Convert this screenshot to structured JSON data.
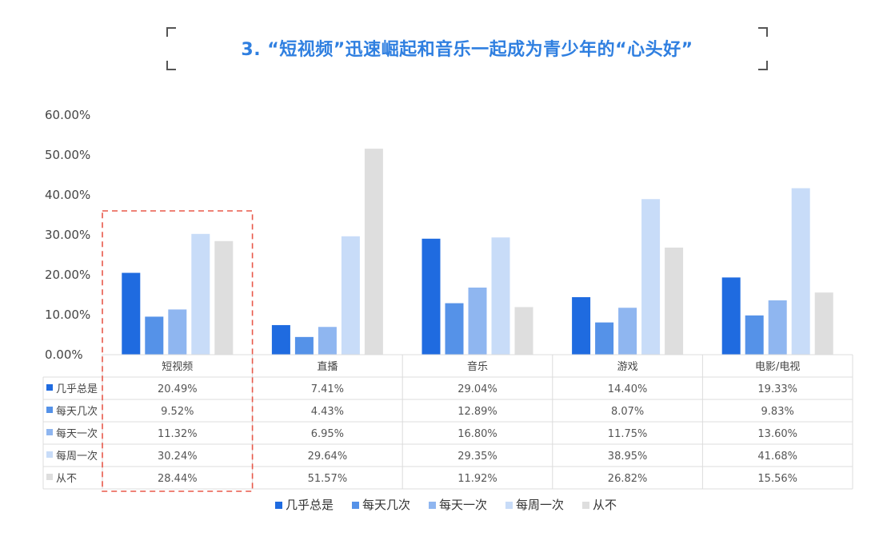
{
  "title": "3. “短视频”迅速崛起和音乐一起成为青少年的“心头好”",
  "chart_data": {
    "type": "bar",
    "categories": [
      "短视频",
      "直播",
      "音乐",
      "游戏",
      "电影/电视"
    ],
    "series": [
      {
        "name": "几乎总是",
        "color": "#1f6be0",
        "values": [
          20.49,
          7.41,
          29.04,
          14.4,
          19.33
        ],
        "labels": [
          "20.49%",
          "7.41%",
          "29.04%",
          "14.40%",
          "19.33%"
        ]
      },
      {
        "name": "每天几次",
        "color": "#5592e8",
        "values": [
          9.52,
          4.43,
          12.89,
          8.07,
          9.83
        ],
        "labels": [
          "9.52%",
          "4.43%",
          "12.89%",
          "8.07%",
          "9.83%"
        ]
      },
      {
        "name": "每天一次",
        "color": "#8fb6f0",
        "values": [
          11.32,
          6.95,
          16.8,
          11.75,
          13.6
        ],
        "labels": [
          "11.32%",
          "6.95%",
          "16.80%",
          "11.75%",
          "13.60%"
        ]
      },
      {
        "name": "每周一次",
        "color": "#c8dcf8",
        "values": [
          30.24,
          29.64,
          29.35,
          38.95,
          41.68
        ],
        "labels": [
          "30.24%",
          "29.64%",
          "29.35%",
          "38.95%",
          "41.68%"
        ]
      },
      {
        "name": "从不",
        "color": "#dedede",
        "values": [
          28.44,
          51.57,
          11.92,
          26.82,
          15.56
        ],
        "labels": [
          "28.44%",
          "51.57%",
          "11.92%",
          "26.82%",
          "15.56%"
        ]
      }
    ],
    "yticks": [
      "0.00%",
      "10.00%",
      "20.00%",
      "30.00%",
      "40.00%",
      "50.00%",
      "60.00%"
    ],
    "ylim": [
      0,
      60
    ],
    "highlight_category": "短视频",
    "highlight_color": "#e8584a",
    "legend_position": "bottom"
  }
}
